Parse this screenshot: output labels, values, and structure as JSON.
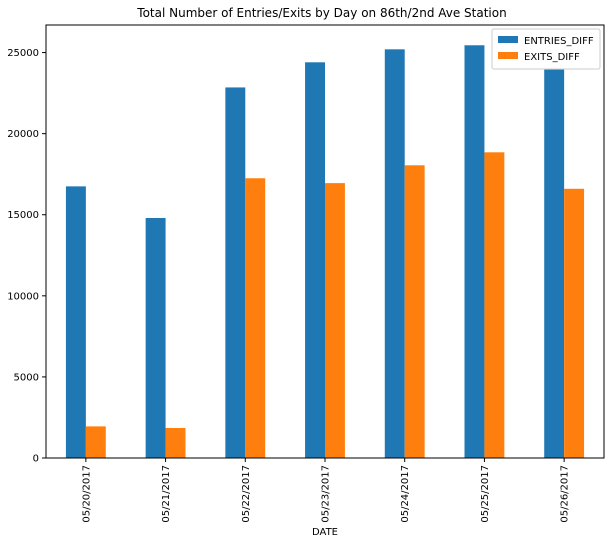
{
  "chart_data": {
    "type": "bar",
    "title": "Total Number of Entries/Exits by Day on 86th/2nd Ave Station",
    "xlabel": "DATE",
    "ylabel": "",
    "categories": [
      "05/20/2017",
      "05/21/2017",
      "05/22/2017",
      "05/23/2017",
      "05/24/2017",
      "05/25/2017",
      "05/26/2017"
    ],
    "series": [
      {
        "name": "ENTRIES_DIFF",
        "color": "#1f77b4",
        "values": [
          16750,
          14800,
          22850,
          24400,
          25200,
          25450,
          23950
        ]
      },
      {
        "name": "EXITS_DIFF",
        "color": "#ff7f0e",
        "values": [
          1950,
          1850,
          17250,
          16950,
          18050,
          18850,
          16600
        ]
      }
    ],
    "ylim": [
      0,
      26700
    ],
    "yticks": [
      0,
      5000,
      10000,
      15000,
      20000,
      25000
    ],
    "grid": false,
    "legend": "top-right"
  }
}
